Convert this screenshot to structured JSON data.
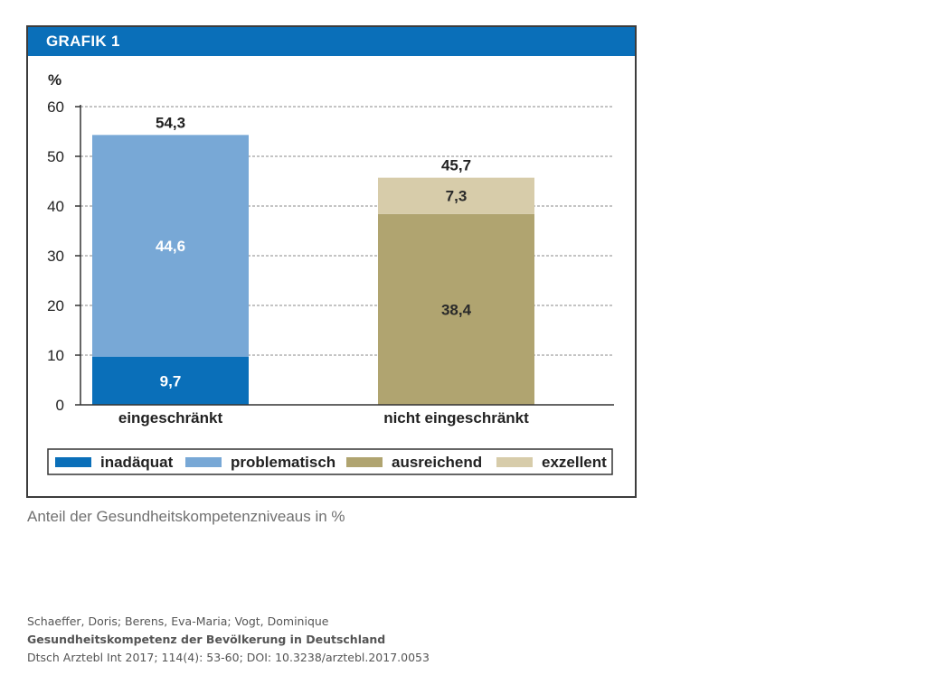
{
  "header": {
    "title": "GRAFIK 1"
  },
  "chart_data": {
    "type": "bar",
    "stacked": true,
    "ylabel": "%",
    "ylim": [
      0,
      60
    ],
    "yticks": [
      0,
      10,
      20,
      30,
      40,
      50,
      60
    ],
    "ytick_labels": [
      "0",
      "10",
      "20",
      "30",
      "40",
      "50",
      "60"
    ],
    "grid": true,
    "categories": [
      "eingeschränkt",
      "nicht eingeschränkt"
    ],
    "series": [
      {
        "name": "inadäquat",
        "color": "#0a6fb9",
        "values": [
          9.7,
          0
        ],
        "labels": [
          "9,7",
          ""
        ],
        "label_color": "#ffffff"
      },
      {
        "name": "problematisch",
        "color": "#78a8d6",
        "values": [
          44.6,
          0
        ],
        "labels": [
          "44,6",
          ""
        ],
        "label_color": "#ffffff"
      },
      {
        "name": "ausreichend",
        "color": "#b0a470",
        "values": [
          0,
          38.4
        ],
        "labels": [
          "",
          "38,4"
        ],
        "label_color": "#2a2a2a"
      },
      {
        "name": "exzellent",
        "color": "#d7ccaa",
        "values": [
          0,
          7.3
        ],
        "labels": [
          "",
          "7,3"
        ],
        "label_color": "#2a2a2a"
      }
    ],
    "totals": [
      54.3,
      45.7
    ],
    "total_labels": [
      "54,3",
      "45,7"
    ],
    "legend_position": "bottom"
  },
  "caption": "Anteil der Gesundheitskompetenzniveaus in %",
  "citation": {
    "authors": "Schaeffer, Doris; Berens, Eva-Maria; Vogt, Dominique",
    "title": "Gesundheitskompetenz der Bevölkerung in Deutschland",
    "source": "Dtsch Arztebl Int 2017; 114(4): 53-60; DOI: 10.3238/arztebl.2017.0053"
  }
}
